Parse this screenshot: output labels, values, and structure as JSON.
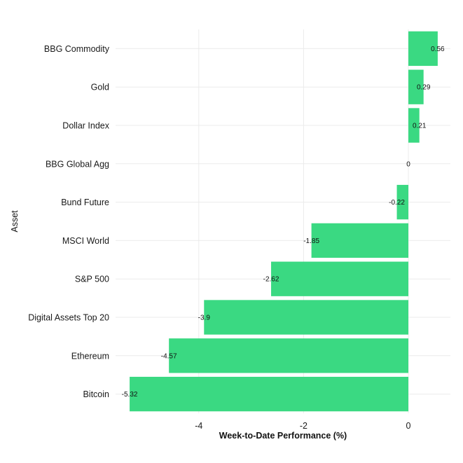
{
  "chart_data": {
    "type": "bar",
    "orientation": "horizontal",
    "categories": [
      "BBG Commodity",
      "Gold",
      "Dollar Index",
      "BBG Global Agg",
      "Bund Future",
      "MSCI World",
      "S&P 500",
      "Digital Assets Top 20",
      "Ethereum",
      "Bitcoin"
    ],
    "values": [
      0.56,
      0.29,
      0.21,
      0,
      -0.22,
      -1.85,
      -2.62,
      -3.9,
      -4.57,
      -5.32
    ],
    "data_labels": [
      "0.56",
      "0.29",
      "0.21",
      "0",
      "-0.22",
      "-1.85",
      "-2.62",
      "-3.9",
      "-4.57",
      "-5.32"
    ],
    "xlabel": "Week-to-Date Performance (%)",
    "ylabel": "Asset",
    "xlim": [
      -5.35,
      0.72
    ],
    "x_ticks": [
      -4,
      -2,
      0
    ],
    "x_tick_labels": [
      "-4",
      "-2",
      "0"
    ],
    "bar_color": "#3ad982",
    "grid": true,
    "legend": false
  }
}
